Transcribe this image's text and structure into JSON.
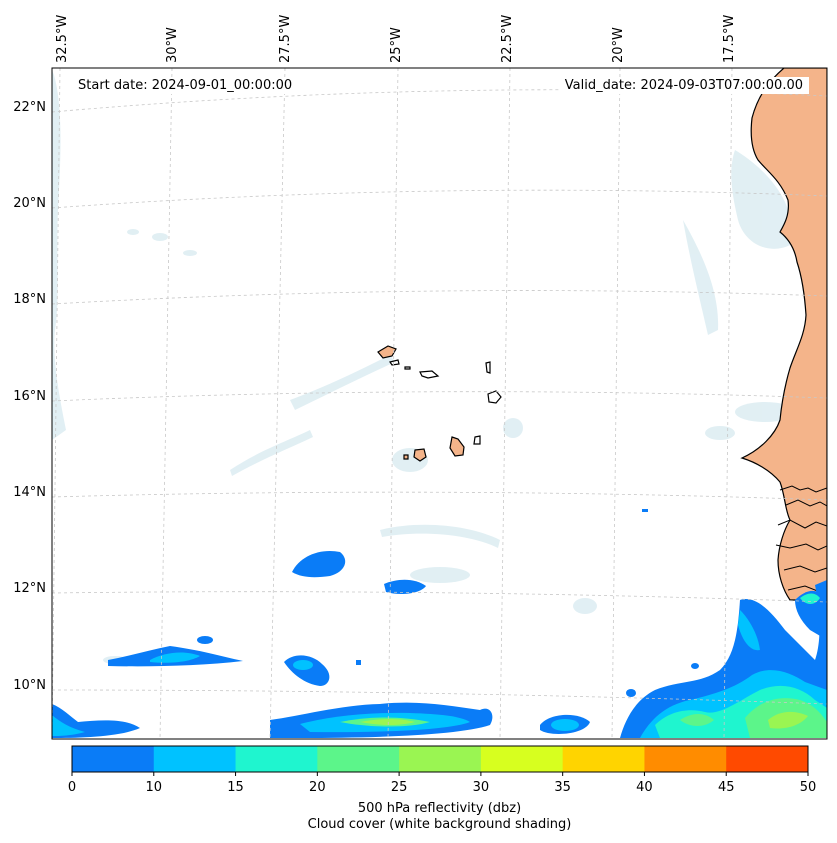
{
  "header": {
    "start_date": "Start date: 2024-09-01_00:00:00",
    "valid_date": "Valid_date: 2024-09-03T07:00:00.00"
  },
  "map": {
    "projection": "lambert-conformal",
    "lon_labels": [
      "32.5°W",
      "30°W",
      "27.5°W",
      "25°W",
      "22.5°W",
      "20°W",
      "17.5°W"
    ],
    "lat_labels": [
      "22°N",
      "20°N",
      "18°N",
      "16°N",
      "14°N",
      "12°N",
      "10°N"
    ],
    "land_color": "#f4b48a",
    "coast_color": "#000000",
    "cloud_color": "#d7eaf0"
  },
  "colorbar": {
    "ticks": [
      "0",
      "10",
      "15",
      "20",
      "25",
      "30",
      "35",
      "40",
      "45",
      "50"
    ],
    "colors": [
      "#0a7cf7",
      "#00c2ff",
      "#1ff5cf",
      "#5cf58a",
      "#9af552",
      "#d7ff1f",
      "#ffd400",
      "#ff8c00",
      "#ff4a00"
    ],
    "label": "500 hPa reflectivity (dbz)",
    "sublabel": "Cloud cover (white background shading)"
  }
}
